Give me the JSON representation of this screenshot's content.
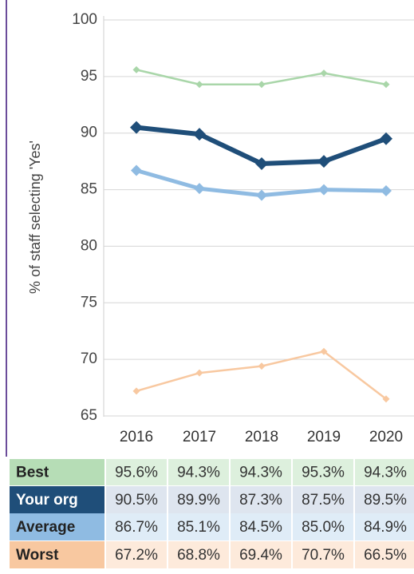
{
  "chart_data": {
    "type": "line",
    "y_label": "% of staff selecting 'Yes'",
    "categories": [
      "2016",
      "2017",
      "2018",
      "2019",
      "2020"
    ],
    "ylim": [
      65,
      100
    ],
    "yticks": [
      65,
      70,
      75,
      80,
      85,
      90,
      95,
      100
    ],
    "grid": true,
    "series": [
      {
        "name": "Best",
        "color": "#a9d6a9",
        "label_bg": "#b6ddb6",
        "cell_bg": "#ddf0dd",
        "label_color": "#222222",
        "width": 2.5,
        "values": [
          95.6,
          94.3,
          94.3,
          95.3,
          94.3
        ],
        "value_labels": [
          "95.6%",
          "94.3%",
          "94.3%",
          "95.3%",
          "94.3%"
        ]
      },
      {
        "name": "Your org",
        "color": "#1f4e79",
        "label_bg": "#1f4e79",
        "cell_bg": "#dee5ef",
        "label_color": "#ffffff",
        "width": 6,
        "values": [
          90.5,
          89.9,
          87.3,
          87.5,
          89.5
        ],
        "value_labels": [
          "90.5%",
          "89.9%",
          "87.3%",
          "87.5%",
          "89.5%"
        ]
      },
      {
        "name": "Average",
        "color": "#8fbbe2",
        "label_bg": "#8fbbe2",
        "cell_bg": "#dfecf7",
        "label_color": "#222222",
        "width": 5,
        "values": [
          86.7,
          85.1,
          84.5,
          85.0,
          84.9
        ],
        "value_labels": [
          "86.7%",
          "85.1%",
          "84.5%",
          "85.0%",
          "84.9%"
        ]
      },
      {
        "name": "Worst",
        "color": "#f8c8a0",
        "label_bg": "#f8c8a0",
        "cell_bg": "#fdeadb",
        "label_color": "#222222",
        "width": 2.5,
        "values": [
          67.2,
          68.8,
          69.4,
          70.7,
          66.5
        ],
        "value_labels": [
          "67.2%",
          "68.8%",
          "69.4%",
          "70.7%",
          "66.5%"
        ]
      }
    ]
  }
}
